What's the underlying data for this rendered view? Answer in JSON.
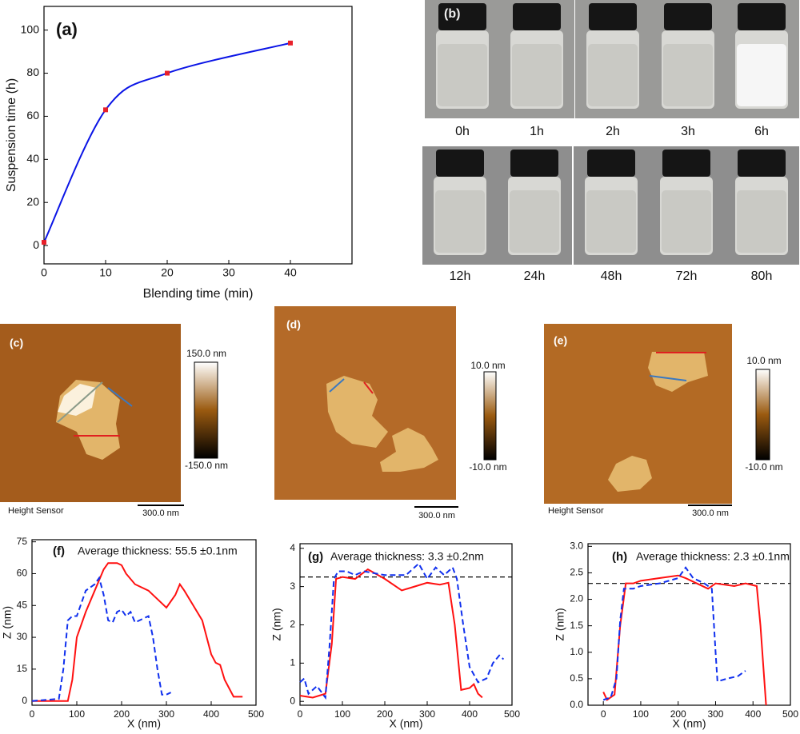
{
  "chart_data": [
    {
      "type": "line",
      "label": "(a)",
      "xlabel": "Blending time (min)",
      "ylabel": "Suspension time (h)",
      "xlim": [
        0,
        50
      ],
      "ylim": [
        -8.5,
        111
      ],
      "xticks": [
        0,
        10,
        20,
        30,
        40
      ],
      "yticks": [
        0,
        20,
        40,
        60,
        80,
        100
      ],
      "smooth": true,
      "series": [
        {
          "color": "#0a14e6",
          "marker_color": "#e8202a",
          "line_style": "solid",
          "x": [
            0,
            10,
            20,
            40
          ],
          "values": [
            1.5,
            63,
            80,
            94
          ]
        }
      ]
    },
    {
      "type": "line",
      "label": "(f)",
      "annotation": "Average thickness: 55.5 ±0.1nm",
      "xlabel": "X (nm)",
      "ylabel": "Z (nm)",
      "xlim": [
        0,
        500
      ],
      "ylim": [
        -2,
        76
      ],
      "xticks": [
        0,
        100,
        200,
        300,
        400,
        500
      ],
      "yticks": [
        0,
        15,
        30,
        45,
        60,
        75
      ],
      "series": [
        {
          "color": "#ff1010",
          "line_style": "solid",
          "x": [
            0,
            80,
            90,
            100,
            120,
            140,
            160,
            170,
            190,
            200,
            210,
            230,
            260,
            280,
            300,
            320,
            330,
            340,
            360,
            380,
            400,
            410,
            420,
            430,
            450,
            470
          ],
          "values": [
            0,
            0,
            10,
            30,
            42,
            52,
            62,
            65,
            65,
            64,
            60,
            55,
            52,
            48,
            44,
            50,
            55,
            52,
            45,
            38,
            22,
            18,
            17,
            10,
            2,
            2
          ]
        },
        {
          "color": "#1030ee",
          "line_style": "dashed",
          "x": [
            0,
            60,
            70,
            80,
            90,
            100,
            120,
            140,
            150,
            160,
            170,
            180,
            190,
            200,
            210,
            220,
            230,
            240,
            260,
            270,
            280,
            290,
            300,
            310
          ],
          "values": [
            0,
            1,
            15,
            38,
            40,
            40,
            52,
            55,
            58,
            50,
            38,
            37,
            42,
            43,
            40,
            42,
            37,
            38,
            40,
            30,
            15,
            3,
            3,
            4
          ]
        }
      ]
    },
    {
      "type": "line",
      "label": "(g)",
      "annotation": "Average thickness: 3.3 ±0.2nm",
      "xlabel": "X (nm)",
      "ylabel": "Z (nm)",
      "xlim": [
        0,
        500
      ],
      "ylim": [
        -0.1,
        4.12
      ],
      "xticks": [
        0,
        100,
        200,
        300,
        400,
        500
      ],
      "yticks": [
        0,
        1,
        2,
        3,
        4
      ],
      "hline": 3.25,
      "series": [
        {
          "color": "#ff1010",
          "line_style": "solid",
          "x": [
            0,
            30,
            60,
            75,
            85,
            100,
            130,
            160,
            200,
            240,
            270,
            300,
            330,
            350,
            365,
            380,
            400,
            410,
            420,
            430
          ],
          "values": [
            0.15,
            0.1,
            0.2,
            1.5,
            3.2,
            3.25,
            3.2,
            3.45,
            3.2,
            2.9,
            3.0,
            3.1,
            3.05,
            3.1,
            2.0,
            0.3,
            0.35,
            0.45,
            0.2,
            0.1
          ]
        },
        {
          "color": "#1030ee",
          "line_style": "dashed",
          "x": [
            0,
            10,
            20,
            40,
            60,
            70,
            80,
            90,
            110,
            130,
            150,
            200,
            250,
            270,
            280,
            300,
            320,
            340,
            360,
            370,
            385,
            400,
            420,
            440,
            455,
            470,
            480
          ],
          "values": [
            0.5,
            0.6,
            0.2,
            0.4,
            0.1,
            1.5,
            3.2,
            3.4,
            3.4,
            3.3,
            3.4,
            3.3,
            3.3,
            3.5,
            3.6,
            3.2,
            3.5,
            3.3,
            3.5,
            3.2,
            2.0,
            0.9,
            0.5,
            0.6,
            1.0,
            1.2,
            1.1
          ]
        }
      ]
    },
    {
      "type": "line",
      "label": "(h)",
      "annotation": "Average thickness: 2.3 ±0.1nm",
      "xlabel": "X (nm)",
      "ylabel": "Z (nm)",
      "xlim": [
        -41,
        500
      ],
      "ylim": [
        0,
        3.05
      ],
      "xticks": [
        0,
        100,
        200,
        300,
        400,
        500
      ],
      "yticks": [
        {
          "value": 0,
          "label": "0.0"
        },
        0.5,
        {
          "value": 1,
          "label": "1.0"
        },
        1.5,
        {
          "value": 2,
          "label": "2.0"
        },
        2.5,
        {
          "value": 3,
          "label": "3.0"
        }
      ],
      "hline": 2.3,
      "series": [
        {
          "color": "#ff1010",
          "line_style": "solid",
          "x": [
            0,
            10,
            30,
            45,
            60,
            80,
            100,
            150,
            200,
            220,
            250,
            280,
            300,
            350,
            380,
            410,
            420,
            430,
            435
          ],
          "values": [
            0.25,
            0.1,
            0.2,
            1.5,
            2.3,
            2.3,
            2.35,
            2.4,
            2.45,
            2.4,
            2.3,
            2.2,
            2.3,
            2.25,
            2.3,
            2.25,
            1.5,
            0.5,
            0
          ]
        },
        {
          "color": "#1030ee",
          "line_style": "dashed",
          "x": [
            0,
            20,
            35,
            45,
            55,
            80,
            100,
            150,
            200,
            220,
            240,
            270,
            290,
            300,
            305,
            330,
            360,
            380
          ],
          "values": [
            0.1,
            0.15,
            0.5,
            1.6,
            2.2,
            2.2,
            2.25,
            2.3,
            2.4,
            2.6,
            2.4,
            2.3,
            2.2,
            1.0,
            0.45,
            0.5,
            0.55,
            0.65
          ]
        }
      ]
    }
  ],
  "photos": {
    "label": "(b)",
    "rows": [
      [
        "0h",
        "1h",
        "2h",
        "3h",
        "6h"
      ],
      [
        "12h",
        "24h",
        "48h",
        "72h",
        "80h"
      ]
    ]
  },
  "afm": [
    {
      "label": "(c)",
      "colorbar_max": "150.0 nm",
      "colorbar_min": "-150.0 nm",
      "sensor": "Height Sensor",
      "scale": "300.0 nm"
    },
    {
      "label": "(d)",
      "colorbar_max": "10.0 nm",
      "colorbar_min": "-10.0 nm",
      "scale": "300.0 nm"
    },
    {
      "label": "(e)",
      "colorbar_max": "10.0 nm",
      "colorbar_min": "-10.0 nm",
      "sensor": "Height Sensor",
      "scale": "300.0 nm"
    }
  ]
}
